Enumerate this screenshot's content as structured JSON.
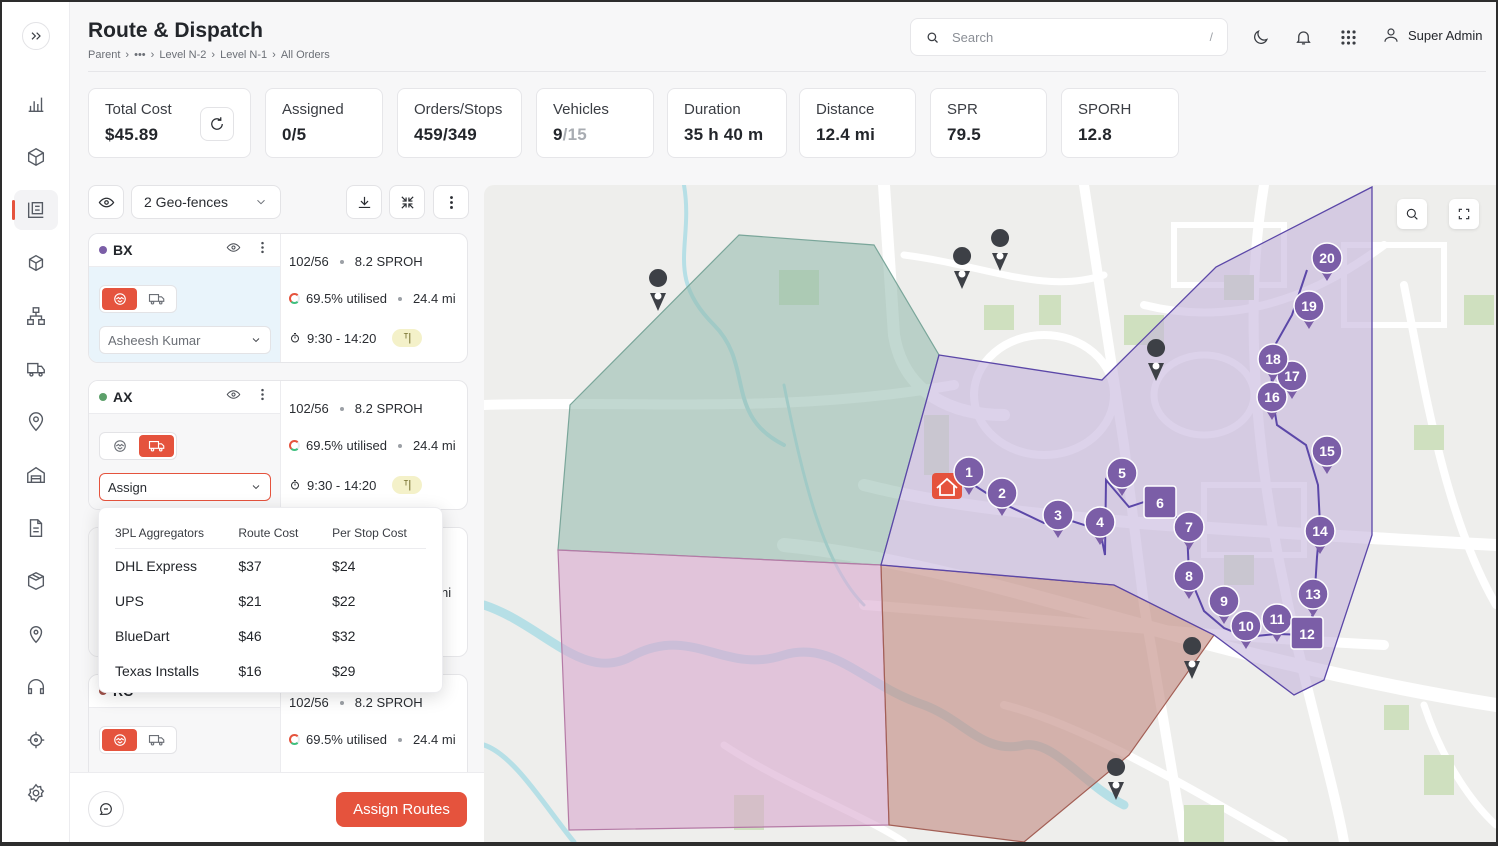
{
  "header": {
    "title": "Route & Dispatch",
    "breadcrumb": [
      "Parent",
      "•••",
      "Level N-2",
      "Level N-1",
      "All Orders"
    ],
    "search_placeholder": "Search",
    "search_shortcut": "/",
    "user_name": "Super Admin"
  },
  "stats": {
    "total_cost": {
      "label": "Total Cost",
      "value": "$45.89"
    },
    "assigned": {
      "label": "Assigned",
      "value": "0/5"
    },
    "orders_stops": {
      "label": "Orders/Stops",
      "value": "459/349"
    },
    "vehicles": {
      "label": "Vehicles",
      "value": "9",
      "total": "/15"
    },
    "duration": {
      "label": "Duration",
      "value": "35 h 40 m"
    },
    "distance": {
      "label": "Distance",
      "value": "12.4 mi"
    },
    "spr": {
      "label": "SPR",
      "value": "79.5"
    },
    "sporh": {
      "label": "SPORH",
      "value": "12.8"
    }
  },
  "toolbar": {
    "geofence_label": "2 Geo-fences"
  },
  "routes": [
    {
      "name": "BX",
      "color": "#7b5ea7",
      "stops": "102/56",
      "sproh": "8.2 SPROH",
      "utilised": "69.5% utilised",
      "distance": "24.4 mi",
      "time": "9:30 - 14:20",
      "driver": "Asheesh Kumar"
    },
    {
      "name": "AX",
      "color": "#5ca06a",
      "stops": "102/56",
      "sproh": "8.2 SPROH",
      "utilised": "69.5% utilised",
      "distance": "24.4 mi",
      "time": "9:30 - 14:20",
      "driver": "Assign"
    },
    {
      "name": "RC",
      "color": "#a0524a",
      "stops": "102/56",
      "sproh": "8.2 SPROH",
      "utilised": "69.5% utilised",
      "distance": "24.4 mi",
      "hidden_tail": "ni"
    }
  ],
  "aggregators": {
    "headers": [
      "3PL Aggregators",
      "Route Cost",
      "Per Stop Cost"
    ],
    "rows": [
      {
        "name": "DHL Express",
        "route_cost": "$37",
        "per_stop": "$24"
      },
      {
        "name": "UPS",
        "route_cost": "$21",
        "per_stop": "$22"
      },
      {
        "name": "BlueDart",
        "route_cost": "$46",
        "per_stop": "$32"
      },
      {
        "name": "Texas Installs",
        "route_cost": "$16",
        "per_stop": "$29"
      }
    ]
  },
  "footer": {
    "assign_label": "Assign Routes"
  },
  "map": {
    "stop_labels": [
      "1",
      "2",
      "3",
      "4",
      "5",
      "6",
      "7",
      "8",
      "9",
      "10",
      "11",
      "12",
      "13",
      "14",
      "15",
      "16",
      "17",
      "18",
      "19",
      "20"
    ],
    "route_color": "#7b5ea7"
  }
}
